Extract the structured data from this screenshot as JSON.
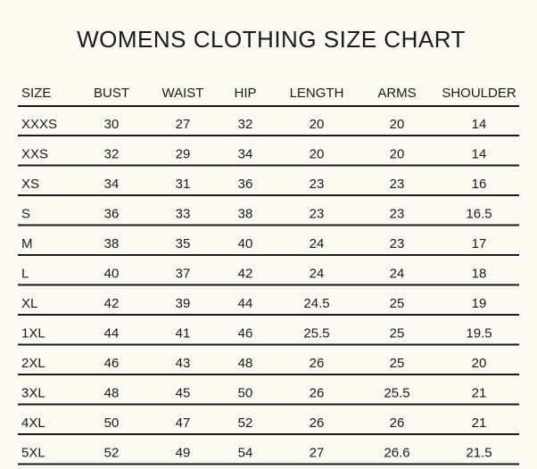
{
  "header": {
    "title": "WOMENS  CLOTHING SIZE CHART"
  },
  "table": {
    "columns": [
      "SIZE",
      "BUST",
      "WAIST",
      "HIP",
      "LENGTH",
      "ARMS",
      "SHOULDER"
    ],
    "rows": [
      [
        "XXXS",
        30,
        27,
        32,
        20,
        20,
        14
      ],
      [
        "XXS",
        32,
        29,
        34,
        20,
        20,
        14
      ],
      [
        "XS",
        34,
        31,
        36,
        23,
        23,
        16
      ],
      [
        "S",
        36,
        33,
        38,
        23,
        23,
        16.5
      ],
      [
        "M",
        38,
        35,
        40,
        24,
        23,
        17
      ],
      [
        "L",
        40,
        37,
        42,
        24,
        24,
        18
      ],
      [
        "XL",
        42,
        39,
        44,
        24.5,
        25,
        19
      ],
      [
        "1XL",
        44,
        41,
        46,
        25.5,
        25,
        19.5
      ],
      [
        "2XL",
        46,
        43,
        48,
        26,
        25,
        20
      ],
      [
        "3XL",
        48,
        45,
        50,
        26,
        25.5,
        21
      ],
      [
        "4XL",
        50,
        47,
        52,
        26,
        26,
        21
      ],
      [
        "5XL",
        52,
        49,
        54,
        27,
        26.6,
        21.5
      ]
    ]
  }
}
